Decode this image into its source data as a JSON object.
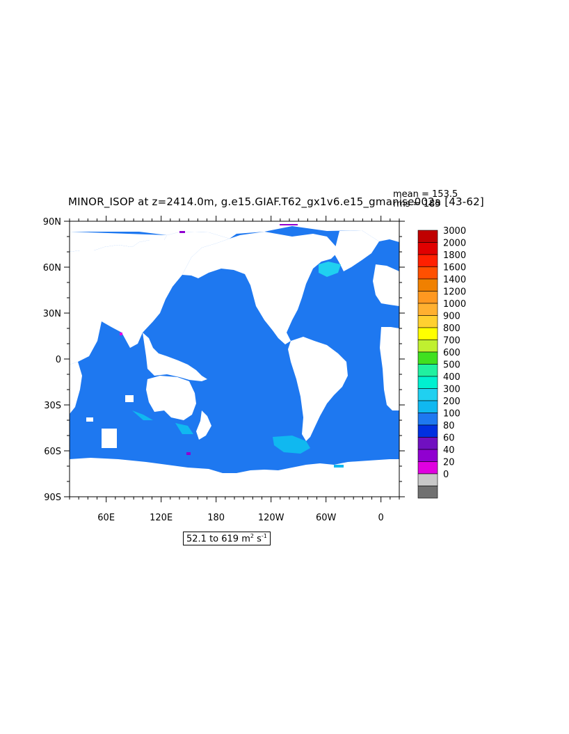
{
  "title": "MINOR_ISOP at z=2414.0m, g.e15.GIAF.T62_gx1v6.e15_gmanise002a [43-62]",
  "stats": {
    "mean": "mean = 153.5",
    "rms": "rms = 185"
  },
  "range_label": {
    "text": "52.1 to 619 m",
    "unit_sup1": "2",
    "unit_mid": " s",
    "unit_sup2": "-1"
  },
  "chart_data": {
    "type": "heatmap",
    "title": "MINOR_ISOP at z=2414.0m, g.e15.GIAF.T62_gx1v6.e15_gmanise002a [43-62]",
    "projection": "cylindrical equidistant",
    "longitude_range": [
      20,
      380
    ],
    "latitude_range": [
      -90,
      90
    ],
    "y_ticks": [
      "90N",
      "60N",
      "30N",
      "0",
      "30S",
      "60S",
      "90S"
    ],
    "x_ticks": [
      "60E",
      "120E",
      "180",
      "120W",
      "60W",
      "0"
    ],
    "field_range": [
      52.1,
      619
    ],
    "units": "m2 s-1",
    "mean": 153.5,
    "rms": 185,
    "land_color": "#ffffff",
    "dominant_ocean_level": "100-200",
    "dominant_ocean_color": "#1E78F0",
    "colorbar": {
      "labels": [
        "3000",
        "2000",
        "1800",
        "1600",
        "1400",
        "1200",
        "1000",
        "900",
        "800",
        "700",
        "600",
        "500",
        "400",
        "300",
        "200",
        "100",
        "80",
        "60",
        "40",
        "20",
        "0"
      ],
      "colors": [
        "#C00000",
        "#E00000",
        "#FF2000",
        "#FF5000",
        "#F08000",
        "#FF9820",
        "#FFB030",
        "#FFD030",
        "#FFFF00",
        "#C0F030",
        "#40E020",
        "#20F0A0",
        "#00F0D0",
        "#20D0F0",
        "#10B8F0",
        "#1E78F0",
        "#0030E0",
        "#7010C0",
        "#9000D0",
        "#E000E0",
        "#C8C8C8",
        "#707070"
      ]
    }
  }
}
